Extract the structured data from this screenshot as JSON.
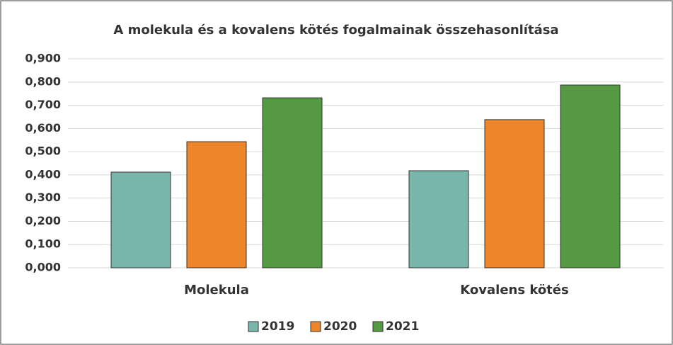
{
  "chart_data": {
    "type": "bar",
    "title": "A molekula és a kovalens kötés fogalmainak összehasonlítása",
    "categories": [
      "Molekula",
      "Kovalens kötés"
    ],
    "series": [
      {
        "name": "2019",
        "color": "#7ab5ac",
        "values": [
          0.412,
          0.418
        ]
      },
      {
        "name": "2020",
        "color": "#ed852a",
        "values": [
          0.543,
          0.638
        ]
      },
      {
        "name": "2021",
        "color": "#559a43",
        "values": [
          0.732,
          0.787
        ]
      }
    ],
    "ylim": [
      0,
      0.9
    ],
    "yticks": [
      {
        "value": 0,
        "label": "0,000"
      },
      {
        "value": 0.1,
        "label": "0,100"
      },
      {
        "value": 0.2,
        "label": "0,200"
      },
      {
        "value": 0.3,
        "label": "0,300"
      },
      {
        "value": 0.4,
        "label": "0,400"
      },
      {
        "value": 0.5,
        "label": "0,500"
      },
      {
        "value": 0.6,
        "label": "0,600"
      },
      {
        "value": 0.7,
        "label": "0,700"
      },
      {
        "value": 0.8,
        "label": "0,800"
      },
      {
        "value": 0.9,
        "label": "0,900"
      }
    ],
    "grid": true,
    "legend": "bottom"
  }
}
